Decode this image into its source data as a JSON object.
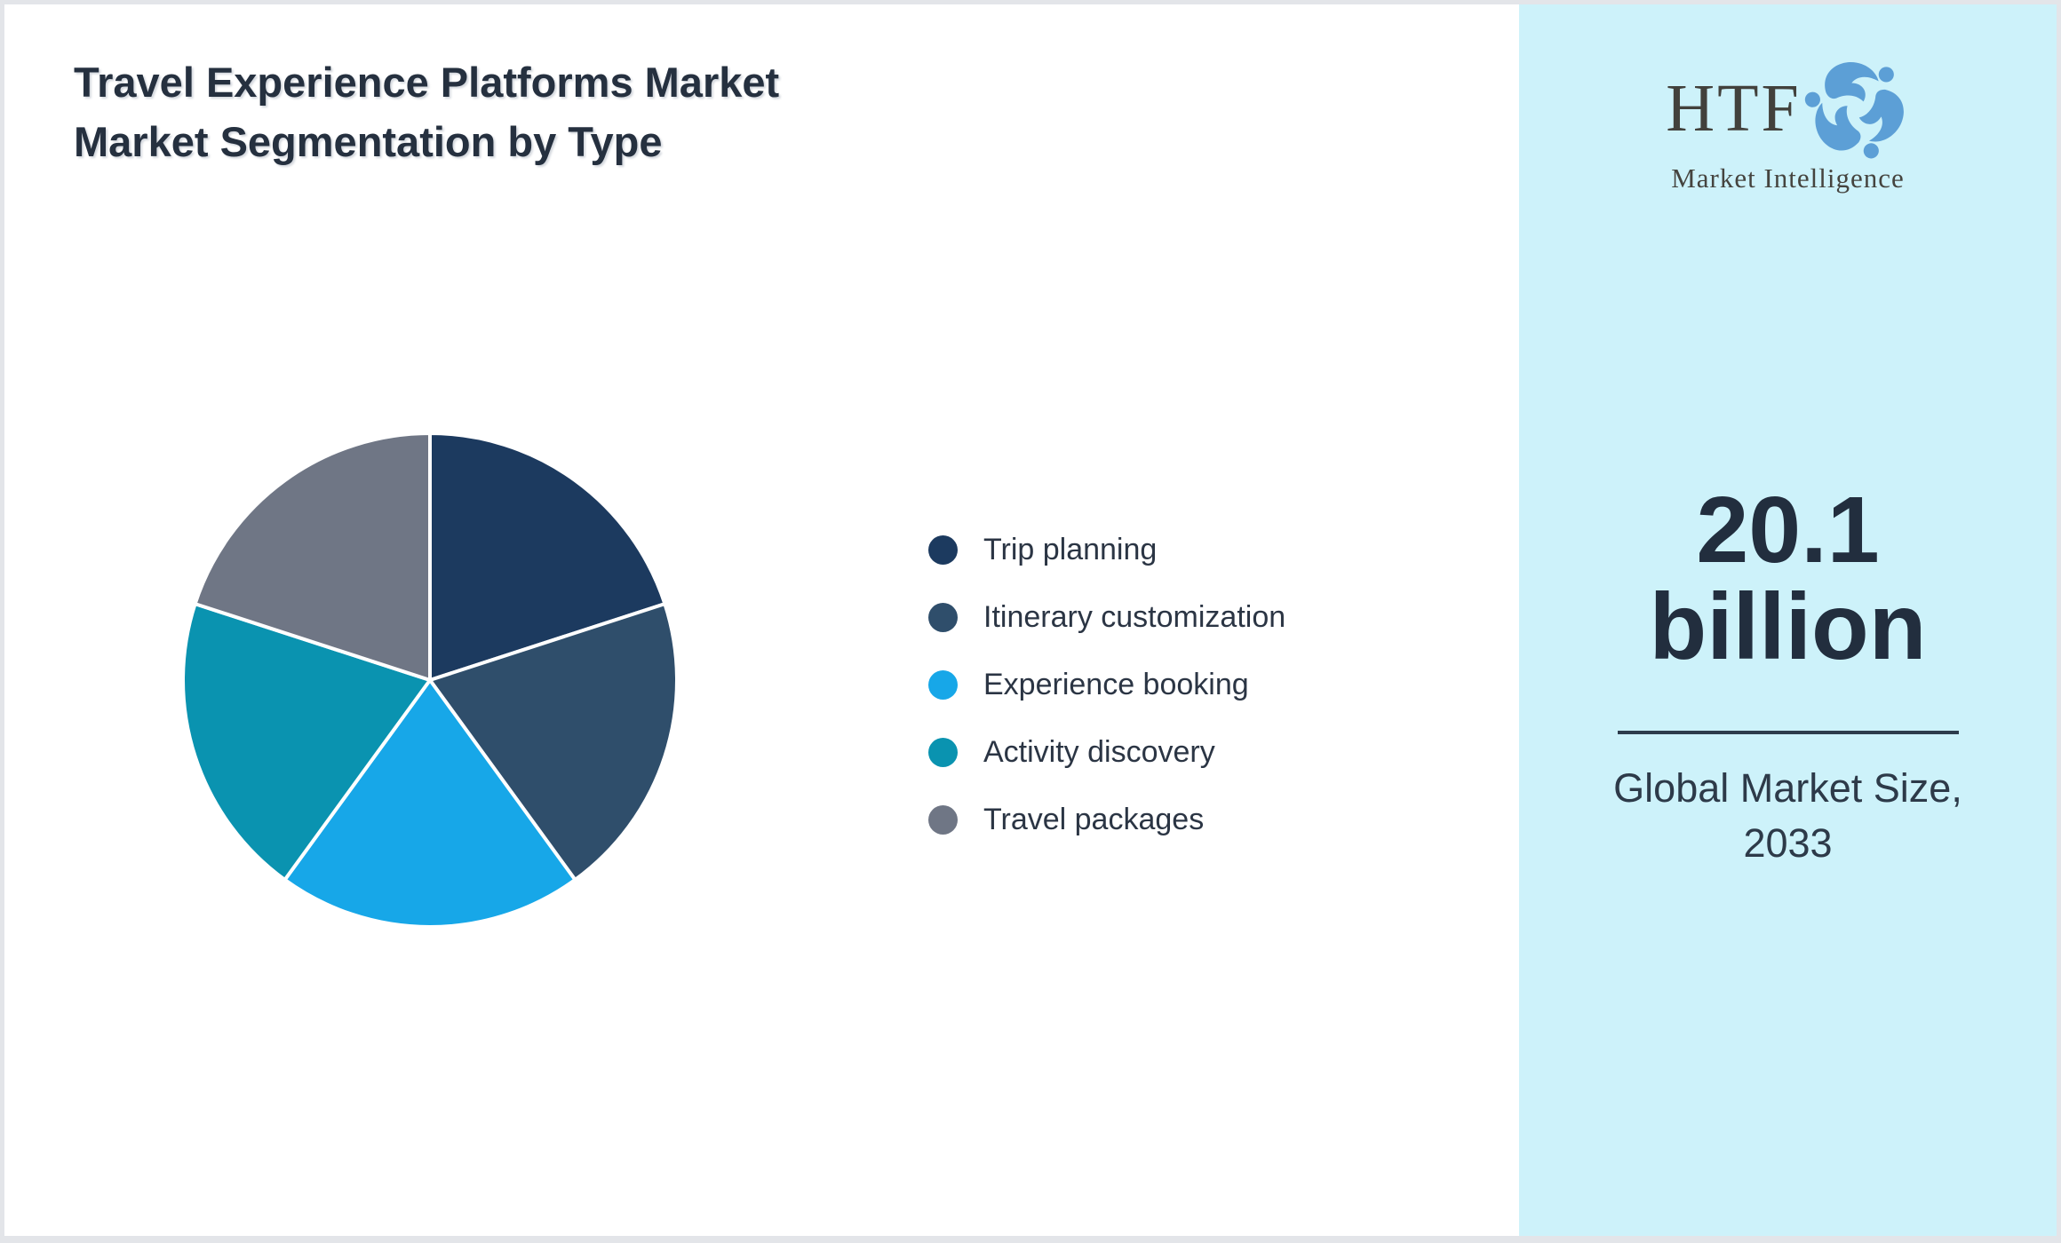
{
  "title": "Travel Experience Platforms Market Market Segmentation by Type",
  "chart_data": {
    "type": "pie",
    "categories": [
      "Trip planning",
      "Itinerary customization",
      "Experience booking",
      "Activity discovery",
      "Travel packages"
    ],
    "values": [
      20,
      20,
      20,
      20,
      20
    ],
    "colors": [
      "#1c3a5f",
      "#2f4e6b",
      "#17a7e8",
      "#0a93b0",
      "#6f7685"
    ],
    "start_angle_deg": -90,
    "direction": "clockwise",
    "legend_position": "right",
    "slice_gap_color": "#ffffff"
  },
  "sidebar": {
    "background": "#cdf2fa",
    "logo": {
      "acronym": "HTF",
      "subtitle": "Market Intelligence",
      "swirl_colors": [
        "#5c9fd6",
        "#3a6d9c",
        "#b9c3cd"
      ]
    },
    "market_size": {
      "value": "20.1",
      "unit": "billion",
      "caption": "Global Market Size, 2033"
    }
  }
}
